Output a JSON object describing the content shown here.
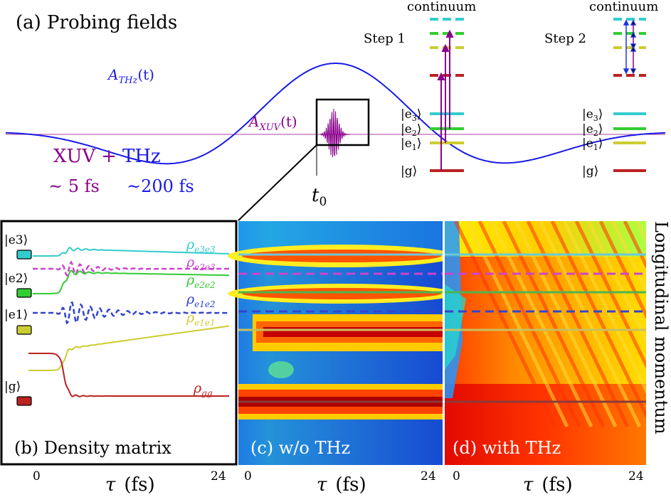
{
  "panel_a": {
    "title": "(a) Probing fields",
    "thz_label": "A",
    "thz_sub": "THz",
    "thz_arg": "(t)",
    "xuv_label": "A",
    "xuv_sub": "XUV",
    "xuv_arg": "(t)",
    "xuv_word": "XUV",
    "plus": "+",
    "thz_word": "THz",
    "xuv_duration": "~ 5 fs",
    "thz_duration": "~200 fs",
    "t0_label": "t",
    "t0_sub": "0",
    "step1": "Step 1",
    "step2": "Step 2",
    "continuum1": "continuum",
    "continuum2": "continuum",
    "level_e3": "|e",
    "level_e3_sub": "3",
    "level_e2": "|e",
    "level_e2_sub": "2",
    "level_e1": "|e",
    "level_e1_sub": "1",
    "level_g": "|g",
    "ket": "⟩"
  },
  "panel_b": {
    "caption": "(b) Density matrix",
    "rho": "ρ",
    "rho_e3e3": "e3e3",
    "rho_e2e3": "e2e3",
    "rho_e2e2": "e2e2",
    "rho_e1e2": "e1e2",
    "rho_e1e1": "e1e1",
    "rho_gg": "gg",
    "state_e3": "|e3⟩",
    "state_e2": "|e2⟩",
    "state_e1": "|e1⟩",
    "state_g": "|g⟩"
  },
  "panel_c": {
    "caption": "(c) w/o THz"
  },
  "panel_d": {
    "caption": "(d) with THz"
  },
  "axes": {
    "tau_label": "τ",
    "fs_label": "(fs)",
    "tick_0": "0",
    "tick_24": "24",
    "right_label": "Longitudinal momentum"
  },
  "colors": {
    "thz": "#1a1ae6",
    "xuv": "#8b008b",
    "e3": "#33cccc",
    "e2": "#33cc33",
    "e1": "#cccc33",
    "g": "#bb2222",
    "coherence_e2e3": "#cc44cc",
    "coherence_e1e2": "#3344cc"
  }
}
